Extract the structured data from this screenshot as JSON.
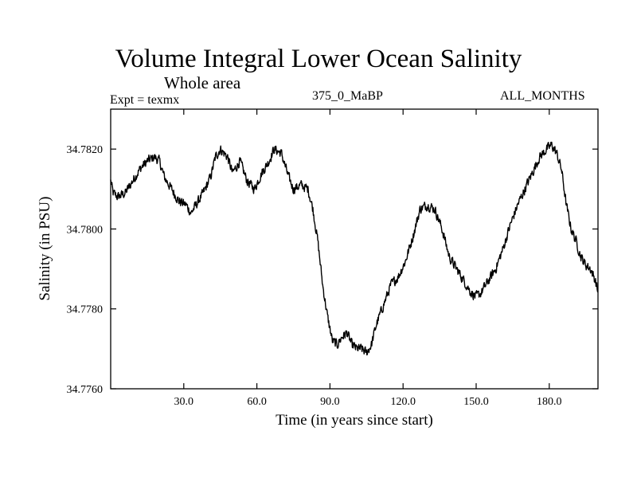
{
  "chart_data": {
    "type": "line",
    "title": "Volume Integral Lower Ocean Salinity",
    "subtitle": "Whole area",
    "expt_label": "Expt = texmx",
    "center_label": "375_0_MaBP",
    "right_label": "ALL_MONTHS",
    "xlabel": "Time (in years since start)",
    "ylabel": "Salinity (in PSU)",
    "xlim": [
      0,
      200
    ],
    "ylim": [
      34.776,
      34.783
    ],
    "x_ticks": [
      30,
      60,
      90,
      120,
      150,
      180
    ],
    "x_tick_labels": [
      "30.0",
      "60.0",
      "90.0",
      "120.0",
      "150.0",
      "180.0"
    ],
    "y_ticks": [
      34.776,
      34.778,
      34.78,
      34.782
    ],
    "y_tick_labels": [
      "34.7760",
      "34.7780",
      "34.7800",
      "34.7820"
    ],
    "grid": false,
    "series": [
      {
        "name": "salinity",
        "color": "#000000",
        "x": [
          0,
          1,
          3,
          6,
          9,
          12,
          15,
          18,
          20,
          22,
          25,
          28,
          31,
          33,
          35,
          38,
          41,
          43,
          45,
          48,
          50,
          53,
          56,
          59,
          62,
          65,
          67,
          70,
          73,
          75,
          78,
          81,
          83,
          85,
          87,
          89,
          91,
          93,
          95,
          97,
          99,
          101,
          103,
          105,
          107,
          109,
          112,
          115,
          118,
          121,
          124,
          127,
          130,
          133,
          136,
          139,
          142,
          145,
          148,
          150,
          152,
          155,
          158,
          161,
          164,
          167,
          170,
          173,
          176,
          179,
          181,
          183,
          185,
          187,
          189,
          191,
          193,
          195,
          197,
          199,
          200
        ],
        "values": [
          34.7812,
          34.7809,
          34.7808,
          34.7809,
          34.7812,
          34.7815,
          34.7817,
          34.7818,
          34.7817,
          34.7813,
          34.781,
          34.7807,
          34.7806,
          34.7804,
          34.7806,
          34.7809,
          34.7813,
          34.7818,
          34.782,
          34.7818,
          34.7814,
          34.7817,
          34.7812,
          34.781,
          34.7814,
          34.7817,
          34.782,
          34.7819,
          34.7813,
          34.781,
          34.7811,
          34.781,
          34.7805,
          34.7797,
          34.7786,
          34.7778,
          34.7772,
          34.7771,
          34.7773,
          34.7774,
          34.7771,
          34.777,
          34.777,
          34.7769,
          34.7771,
          34.7776,
          34.7781,
          34.7786,
          34.7788,
          34.7792,
          34.7798,
          34.7805,
          34.7806,
          34.7805,
          34.78,
          34.7793,
          34.779,
          34.7787,
          34.7784,
          34.7783,
          34.7784,
          34.7787,
          34.779,
          34.7795,
          34.7801,
          34.7806,
          34.781,
          34.7814,
          34.7818,
          34.782,
          34.7821,
          34.7819,
          34.7815,
          34.7806,
          34.78,
          34.7797,
          34.7793,
          34.7791,
          34.779,
          34.7787,
          34.7784
        ]
      }
    ]
  }
}
